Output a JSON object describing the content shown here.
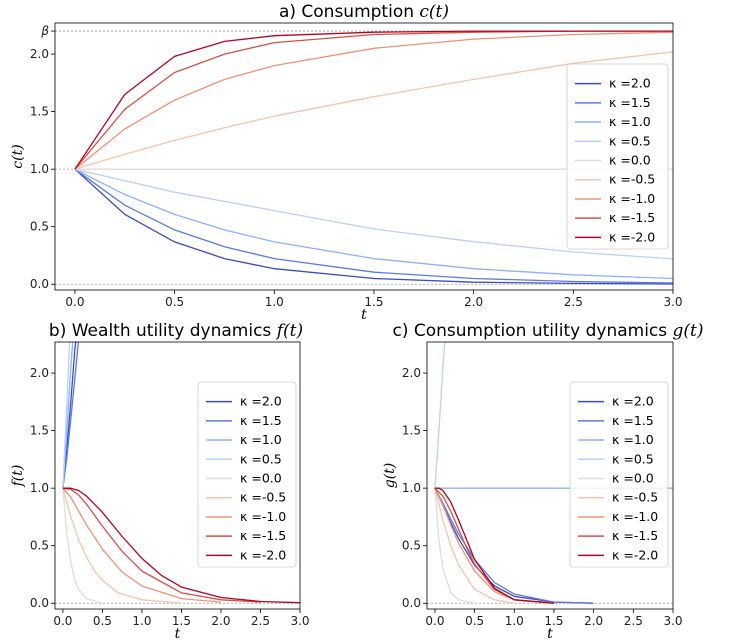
{
  "chart_data": [
    {
      "id": "a",
      "type": "line",
      "title": "a) Consumption",
      "title_math": "c(t)",
      "xlabel": "t",
      "ylabel": "c(t)",
      "xlim": [
        -0.1,
        3.0
      ],
      "ylim": [
        -0.05,
        2.27
      ],
      "xticks": [
        0.0,
        0.5,
        1.0,
        1.5,
        2.0,
        2.5,
        3.0
      ],
      "xticklabels": [
        "0.0",
        "0.5",
        "1.0",
        "1.5",
        "2.0",
        "2.5",
        "3.0"
      ],
      "yticks": [
        0.0,
        0.5,
        1.0,
        1.5,
        2.0
      ],
      "yticklabels": [
        "0.0",
        "0.5",
        "1.0",
        "1.5",
        "2.0"
      ],
      "extra_ytick": {
        "value": 2.2,
        "label": "β"
      },
      "hlines": [
        0.0,
        1.0,
        2.2
      ],
      "legend_position": "center-right",
      "series": [
        {
          "name": "κ =2.0",
          "color": "#3b4cc0",
          "x": [
            0,
            0.25,
            0.5,
            0.75,
            1,
            1.5,
            2,
            2.5,
            3
          ],
          "y": [
            1.0,
            0.607,
            0.368,
            0.223,
            0.135,
            0.05,
            0.018,
            0.007,
            0.002
          ]
        },
        {
          "name": "κ =1.5",
          "color": "#5b7ae5",
          "x": [
            0,
            0.25,
            0.5,
            0.75,
            1,
            1.5,
            2,
            2.5,
            3
          ],
          "y": [
            1.0,
            0.687,
            0.472,
            0.325,
            0.223,
            0.105,
            0.05,
            0.024,
            0.011
          ]
        },
        {
          "name": "κ =1.0",
          "color": "#8db0fe",
          "x": [
            0,
            0.25,
            0.5,
            0.75,
            1,
            1.5,
            2,
            2.5,
            3
          ],
          "y": [
            1.0,
            0.779,
            0.607,
            0.472,
            0.368,
            0.223,
            0.135,
            0.082,
            0.05
          ]
        },
        {
          "name": "κ =0.5",
          "color": "#b9d0f9",
          "x": [
            0,
            0.25,
            0.5,
            0.75,
            1,
            1.5,
            2,
            2.5,
            3
          ],
          "y": [
            1.0,
            0.9,
            0.8,
            0.72,
            0.64,
            0.48,
            0.37,
            0.28,
            0.22
          ]
        },
        {
          "name": "κ =0.0",
          "color": "#dddddd",
          "x": [
            0,
            3
          ],
          "y": [
            1.0,
            1.0
          ]
        },
        {
          "name": "κ =-0.5",
          "color": "#f5c4ac",
          "x": [
            0,
            0.25,
            0.5,
            0.75,
            1,
            1.5,
            2,
            2.5,
            3
          ],
          "y": [
            1.0,
            1.13,
            1.25,
            1.36,
            1.46,
            1.63,
            1.78,
            1.92,
            2.02
          ]
        },
        {
          "name": "κ =-1.0",
          "color": "#f29274",
          "x": [
            0,
            0.25,
            0.5,
            0.75,
            1,
            1.5,
            2,
            2.5,
            3
          ],
          "y": [
            1.0,
            1.35,
            1.6,
            1.78,
            1.9,
            2.05,
            2.13,
            2.17,
            2.19
          ]
        },
        {
          "name": "κ =-1.5",
          "color": "#d65244",
          "x": [
            0,
            0.25,
            0.5,
            0.75,
            1,
            1.5,
            2,
            2.5,
            3
          ],
          "y": [
            1.0,
            1.52,
            1.84,
            2.0,
            2.1,
            2.17,
            2.19,
            2.2,
            2.2
          ]
        },
        {
          "name": "κ =-2.0",
          "color": "#b40426",
          "x": [
            0,
            0.25,
            0.5,
            0.75,
            1,
            1.5,
            2,
            2.5,
            3
          ],
          "y": [
            1.0,
            1.65,
            1.98,
            2.11,
            2.16,
            2.19,
            2.2,
            2.2,
            2.2
          ]
        }
      ]
    },
    {
      "id": "b",
      "type": "line",
      "title": "b) Wealth utility dynamics",
      "title_math": "f(t)",
      "xlabel": "t",
      "ylabel": "f(t)",
      "xlim": [
        -0.1,
        3.0
      ],
      "ylim": [
        -0.05,
        2.27
      ],
      "xticks": [
        0.0,
        0.5,
        1.0,
        1.5,
        2.0,
        2.5,
        3.0
      ],
      "xticklabels": [
        "0.0",
        "0.5",
        "1.0",
        "1.5",
        "2.0",
        "2.5",
        "3.0"
      ],
      "yticks": [
        0.0,
        0.5,
        1.0,
        1.5,
        2.0
      ],
      "yticklabels": [
        "0.0",
        "0.5",
        "1.0",
        "1.5",
        "2.0"
      ],
      "hlines": [
        0.0
      ],
      "legend_position": "center-right",
      "series": [
        {
          "name": "κ =2.0",
          "color": "#3b4cc0",
          "x": [
            0,
            0.05,
            0.1,
            0.15,
            0.2
          ],
          "y": [
            1.0,
            1.35,
            1.75,
            2.2,
            2.5
          ]
        },
        {
          "name": "κ =1.5",
          "color": "#5b7ae5",
          "x": [
            0,
            0.05,
            0.1,
            0.15,
            0.2,
            0.25
          ],
          "y": [
            1.0,
            1.27,
            1.6,
            1.95,
            2.3,
            2.5
          ]
        },
        {
          "name": "κ =1.0",
          "color": "#8db0fe",
          "x": [
            0,
            0.05,
            0.1,
            0.15
          ],
          "y": [
            1.0,
            1.5,
            2.05,
            2.5
          ]
        },
        {
          "name": "κ =0.5",
          "color": "#b9d0f9",
          "x": [
            0,
            0.05,
            0.1
          ],
          "y": [
            1.0,
            1.75,
            2.5
          ]
        },
        {
          "name": "κ =0.0",
          "color": "#dddddd",
          "x": [
            0,
            0.05,
            0.1,
            0.15,
            0.2,
            0.3,
            0.5
          ],
          "y": [
            1.0,
            0.6,
            0.36,
            0.2,
            0.12,
            0.04,
            0.0
          ]
        },
        {
          "name": "κ =-0.5",
          "color": "#f5c4ac",
          "x": [
            0,
            0.1,
            0.2,
            0.3,
            0.4,
            0.5,
            0.7,
            1.0,
            1.5
          ],
          "y": [
            1.0,
            0.75,
            0.55,
            0.4,
            0.28,
            0.2,
            0.09,
            0.03,
            0.0
          ]
        },
        {
          "name": "κ =-1.0",
          "color": "#f29274",
          "x": [
            0,
            0.1,
            0.2,
            0.3,
            0.5,
            0.75,
            1.0,
            1.5,
            2.0
          ],
          "y": [
            1.0,
            0.92,
            0.8,
            0.68,
            0.47,
            0.27,
            0.15,
            0.04,
            0.01
          ]
        },
        {
          "name": "κ =-1.5",
          "color": "#d65244",
          "x": [
            0,
            0.1,
            0.2,
            0.3,
            0.5,
            0.75,
            1.0,
            1.5,
            2.0,
            2.5
          ],
          "y": [
            1.0,
            0.99,
            0.94,
            0.86,
            0.67,
            0.45,
            0.28,
            0.09,
            0.03,
            0.01
          ]
        },
        {
          "name": "κ =-2.0",
          "color": "#b40426",
          "x": [
            0,
            0.1,
            0.2,
            0.3,
            0.5,
            0.75,
            1.0,
            1.25,
            1.5,
            2.0,
            2.5,
            3.0
          ],
          "y": [
            1.0,
            1.0,
            0.98,
            0.93,
            0.79,
            0.58,
            0.39,
            0.24,
            0.14,
            0.05,
            0.015,
            0.005
          ]
        }
      ]
    },
    {
      "id": "c",
      "type": "line",
      "title": "c) Consumption utility dynamics",
      "title_math": "g(t)",
      "xlabel": "t",
      "ylabel": "g(t)",
      "xlim": [
        -0.1,
        3.0
      ],
      "ylim": [
        -0.05,
        2.27
      ],
      "xticks": [
        0.0,
        0.5,
        1.0,
        1.5,
        2.0,
        2.5,
        3.0
      ],
      "xticklabels": [
        "0.0",
        "0.5",
        "1.0",
        "1.5",
        "2.0",
        "2.5",
        "3.0"
      ],
      "yticks": [
        0.0,
        0.5,
        1.0,
        1.5,
        2.0
      ],
      "yticklabels": [
        "0.0",
        "0.5",
        "1.0",
        "1.5",
        "2.0"
      ],
      "hlines": [
        0.0
      ],
      "legend_position": "center-right",
      "series": [
        {
          "name": "κ =2.0",
          "color": "#3b4cc0",
          "x": [
            0,
            0.1,
            0.2,
            0.3,
            0.5,
            0.75,
            1.0,
            1.5,
            2.0
          ],
          "y": [
            1.0,
            0.85,
            0.7,
            0.56,
            0.33,
            0.15,
            0.06,
            0.01,
            0.0
          ]
        },
        {
          "name": "κ =1.5",
          "color": "#5b7ae5",
          "x": [
            0,
            0.1,
            0.2,
            0.3,
            0.5,
            0.75,
            1.0,
            1.5,
            2.0
          ],
          "y": [
            1.0,
            0.87,
            0.73,
            0.6,
            0.38,
            0.18,
            0.08,
            0.01,
            0.0
          ]
        },
        {
          "name": "κ =1.0",
          "color": "#8db0fe",
          "x": [
            0,
            3
          ],
          "y": [
            1.0,
            1.0
          ]
        },
        {
          "name": "κ =0.5",
          "color": "#b9d0f9",
          "x": [
            0,
            0.05,
            0.1,
            0.15
          ],
          "y": [
            1.0,
            1.5,
            2.05,
            2.5
          ]
        },
        {
          "name": "κ =0.0",
          "color": "#dddddd",
          "x": [
            0,
            0.05,
            0.1,
            0.2,
            0.3,
            0.5
          ],
          "y": [
            1.0,
            0.55,
            0.3,
            0.09,
            0.03,
            0.0
          ]
        },
        {
          "name": "κ =-0.5",
          "color": "#f5c4ac",
          "x": [
            0,
            0.1,
            0.2,
            0.3,
            0.5,
            0.75,
            1.0
          ],
          "y": [
            1.0,
            0.72,
            0.5,
            0.33,
            0.12,
            0.03,
            0.0
          ]
        },
        {
          "name": "κ =-1.0",
          "color": "#f29274",
          "x": [
            0,
            0.1,
            0.2,
            0.3,
            0.5,
            0.75,
            1.0,
            1.5
          ],
          "y": [
            1.0,
            0.85,
            0.68,
            0.52,
            0.28,
            0.1,
            0.03,
            0.0
          ]
        },
        {
          "name": "κ =-1.5",
          "color": "#d65244",
          "x": [
            0,
            0.1,
            0.2,
            0.3,
            0.4,
            0.5,
            0.75,
            1.0,
            1.5
          ],
          "y": [
            1.0,
            0.93,
            0.8,
            0.64,
            0.48,
            0.34,
            0.12,
            0.03,
            0.0
          ]
        },
        {
          "name": "κ =-2.0",
          "color": "#b40426",
          "x": [
            0,
            0.05,
            0.1,
            0.2,
            0.3,
            0.4,
            0.5,
            0.75,
            1.0,
            1.5
          ],
          "y": [
            1.0,
            1.0,
            0.98,
            0.88,
            0.72,
            0.55,
            0.38,
            0.13,
            0.03,
            0.0
          ]
        }
      ]
    }
  ]
}
